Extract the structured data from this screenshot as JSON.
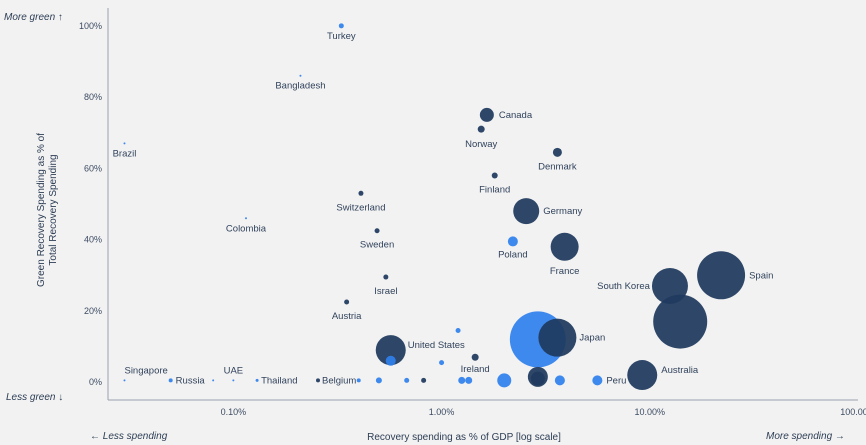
{
  "corner_labels": {
    "more_green": "More green ↑",
    "less_green": "Less green ↓",
    "less_spending": "← Less spending",
    "more_spending": "More spending →"
  },
  "colors": {
    "dark": "#1f3a5f",
    "bright": "#2f80ed",
    "axis": "#9aa3ad",
    "grid": "#d8dbe0"
  },
  "chart_data": {
    "type": "scatter",
    "xlabel": "Recovery spending as % of GDP [log scale]",
    "ylabel": "Green Recovery Spending as % of Total Recovery Spending",
    "xscale": "log",
    "xlim": [
      0.025,
      100
    ],
    "ylim": [
      -5,
      105
    ],
    "x_ticks": [
      {
        "value": 0.1,
        "label": "0.10%"
      },
      {
        "value": 1,
        "label": "1.00%"
      },
      {
        "value": 10,
        "label": "10.00%"
      },
      {
        "value": 100,
        "label": "100.00%"
      }
    ],
    "y_ticks": [
      {
        "value": 0,
        "label": "0%"
      },
      {
        "value": 20,
        "label": "20%"
      },
      {
        "value": 40,
        "label": "40%"
      },
      {
        "value": 60,
        "label": "60%"
      },
      {
        "value": 80,
        "label": "80%"
      },
      {
        "value": 100,
        "label": "100%"
      }
    ],
    "points": [
      {
        "label": "Turkey",
        "x": 0.33,
        "y": 100,
        "size": 2.5,
        "color": "bright"
      },
      {
        "label": "Bangladesh",
        "x": 0.21,
        "y": 86,
        "size": 1,
        "color": "bright"
      },
      {
        "label": "Brazil",
        "x": 0.03,
        "y": 67,
        "size": 1,
        "color": "bright"
      },
      {
        "label": "Colombia",
        "x": 0.115,
        "y": 46,
        "size": 1,
        "color": "bright"
      },
      {
        "label": "Canada",
        "x": 1.65,
        "y": 75,
        "size": 7,
        "color": "dark"
      },
      {
        "label": "Norway",
        "x": 1.55,
        "y": 71,
        "size": 3.5,
        "color": "dark"
      },
      {
        "label": "Denmark",
        "x": 3.6,
        "y": 64.5,
        "size": 4.5,
        "color": "dark"
      },
      {
        "label": "Finland",
        "x": 1.8,
        "y": 58,
        "size": 3,
        "color": "dark"
      },
      {
        "label": "Switzerland",
        "x": 0.41,
        "y": 53,
        "size": 2.5,
        "color": "dark"
      },
      {
        "label": "Germany",
        "x": 2.55,
        "y": 48,
        "size": 13,
        "color": "dark"
      },
      {
        "label": "Sweden",
        "x": 0.49,
        "y": 42.5,
        "size": 2.5,
        "color": "dark"
      },
      {
        "label": "Poland",
        "x": 2.2,
        "y": 39.5,
        "size": 5,
        "color": "bright"
      },
      {
        "label": "France",
        "x": 3.9,
        "y": 38,
        "size": 14,
        "color": "dark"
      },
      {
        "label": "Israel",
        "x": 0.54,
        "y": 29.5,
        "size": 2.5,
        "color": "dark"
      },
      {
        "label": "Spain",
        "x": 22,
        "y": 30,
        "size": 24,
        "color": "dark"
      },
      {
        "label": "South Korea",
        "x": 12.5,
        "y": 27,
        "size": 18,
        "color": "dark"
      },
      {
        "label": "Austria",
        "x": 0.35,
        "y": 22.5,
        "size": 2.5,
        "color": "dark"
      },
      {
        "label": "",
        "x": 14,
        "y": 17,
        "size": 27,
        "color": "dark"
      },
      {
        "label": "",
        "x": 1.2,
        "y": 14.5,
        "size": 2.5,
        "color": "bright"
      },
      {
        "label": "Japan",
        "x": 3.6,
        "y": 12.5,
        "size": 19,
        "color": "dark"
      },
      {
        "label": "",
        "x": 2.9,
        "y": 12,
        "size": 28,
        "color": "bright"
      },
      {
        "label": "United States",
        "x": 0.57,
        "y": 9,
        "size": 15,
        "color": "dark"
      },
      {
        "label": "",
        "x": 0.57,
        "y": 6,
        "size": 5,
        "color": "bright"
      },
      {
        "label": "",
        "x": 1.0,
        "y": 5.5,
        "size": 2.5,
        "color": "bright"
      },
      {
        "label": "Ireland",
        "x": 1.45,
        "y": 7,
        "size": 3.5,
        "color": "dark"
      },
      {
        "label": "Australia",
        "x": 9.2,
        "y": 2,
        "size": 15,
        "color": "dark"
      },
      {
        "label": "",
        "x": 2.9,
        "y": 1.5,
        "size": 10,
        "color": "dark"
      },
      {
        "label": "",
        "x": 2.9,
        "y": 1,
        "size": 7,
        "color": "dark"
      },
      {
        "label": "",
        "x": 2.0,
        "y": 0.5,
        "size": 7,
        "color": "bright"
      },
      {
        "label": "",
        "x": 3.7,
        "y": 0.5,
        "size": 5,
        "color": "bright"
      },
      {
        "label": "Peru",
        "x": 5.6,
        "y": 0.5,
        "size": 5,
        "color": "bright"
      },
      {
        "label": "",
        "x": 1.25,
        "y": 0.5,
        "size": 3.5,
        "color": "bright"
      },
      {
        "label": "",
        "x": 1.35,
        "y": 0.5,
        "size": 3.5,
        "color": "bright"
      },
      {
        "label": "",
        "x": 0.5,
        "y": 0.5,
        "size": 3,
        "color": "bright"
      },
      {
        "label": "",
        "x": 0.68,
        "y": 0.5,
        "size": 2.5,
        "color": "bright"
      },
      {
        "label": "",
        "x": 0.82,
        "y": 0.5,
        "size": 2.5,
        "color": "dark"
      },
      {
        "label": "",
        "x": 0.4,
        "y": 0.5,
        "size": 2,
        "color": "bright"
      },
      {
        "label": "Belgium",
        "x": 0.255,
        "y": 0.5,
        "size": 2,
        "color": "dark"
      },
      {
        "label": "Thailand",
        "x": 0.13,
        "y": 0.5,
        "size": 1.5,
        "color": "bright"
      },
      {
        "label": "UAE",
        "x": 0.1,
        "y": 0.5,
        "size": 1,
        "color": "bright"
      },
      {
        "label": "",
        "x": 0.08,
        "y": 0.5,
        "size": 1,
        "color": "bright"
      },
      {
        "label": "Russia",
        "x": 0.05,
        "y": 0.5,
        "size": 2,
        "color": "bright"
      },
      {
        "label": "Singapore",
        "x": 0.03,
        "y": 0.5,
        "size": 1,
        "color": "bright"
      }
    ]
  }
}
